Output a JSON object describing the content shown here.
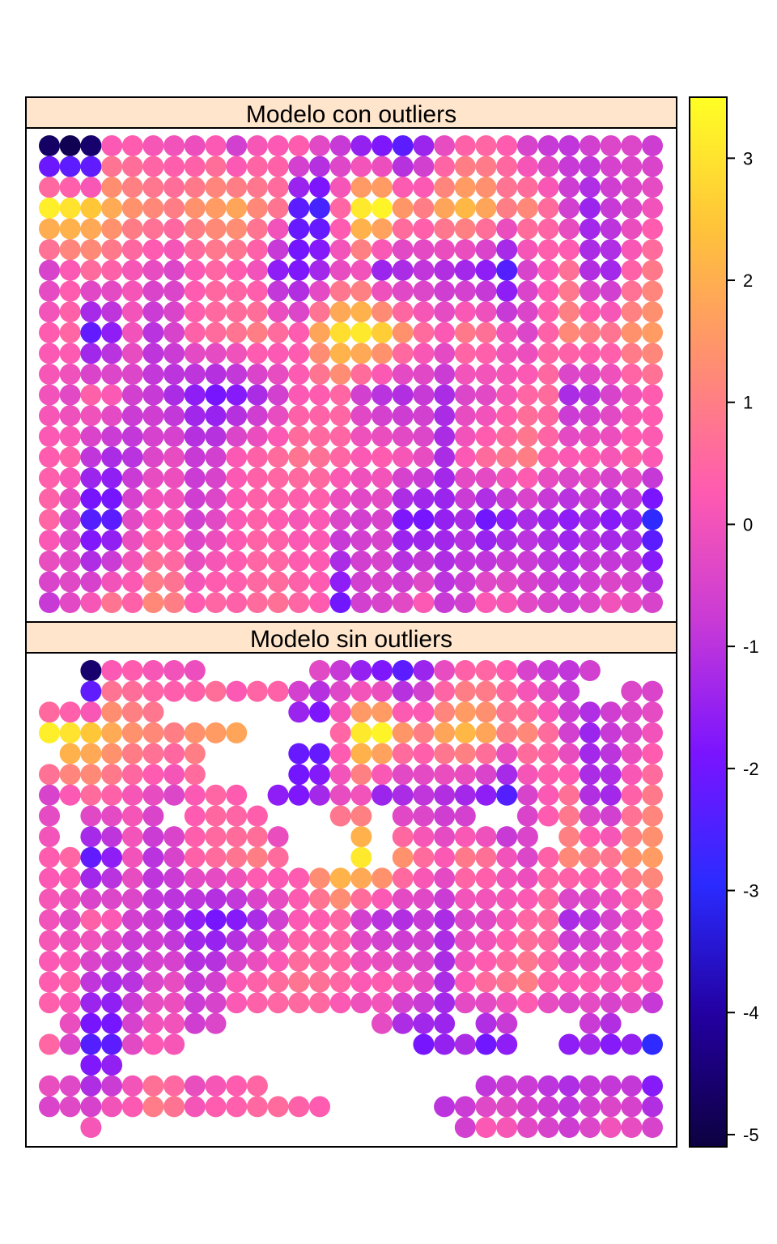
{
  "chart_data": {
    "type": "scatter",
    "description_free": true,
    "panels": [
      {
        "title": "Modelo con outliers"
      },
      {
        "title": "Modelo sin outliers"
      }
    ],
    "grid": {
      "columns": 30,
      "rows": 23,
      "seed_rows": [
        {
          "row": 0,
          "values": [
            -4.7,
            -4.9,
            -4.6,
            0.2,
            0.3,
            0.1,
            0.0,
            -0.1,
            0.2,
            -0.6,
            0.1,
            0.2,
            0.3,
            -0.3,
            -0.8,
            -1.5,
            -1.8,
            -2.3,
            -1.4,
            -0.2,
            0.4,
            0.5,
            0.3,
            -0.5,
            -0.8,
            -0.9,
            -0.6,
            -0.4,
            -0.4,
            -0.7
          ]
        },
        {
          "row": 3,
          "values": [
            3.2,
            3.0,
            2.5,
            1.9,
            1.4,
            1.2,
            1.0,
            1.4,
            1.6,
            1.8,
            1.2,
            0.8,
            -2.3,
            -2.6,
            0.5,
            3.1,
            3.3,
            1.5,
            1.0,
            1.8,
            2.2,
            1.8,
            1.0,
            1.2,
            0.6,
            -0.6,
            -1.4,
            -0.8,
            -0.4,
            0.0
          ]
        },
        {
          "row": 6,
          "values": [
            -0.5,
            0.2,
            0.6,
            0.4,
            0.1,
            -0.2,
            -0.4,
            0.2,
            0.5,
            0.3,
            0.0,
            -1.6,
            -1.8,
            -1.3,
            -0.2,
            0.0,
            -1.4,
            -1.2,
            -0.9,
            -1.1,
            -1.3,
            -1.6,
            -2.4,
            -0.5,
            0.2,
            0.7,
            -1.1,
            -1.3,
            0.4,
            0.9
          ]
        },
        {
          "row": 9,
          "values": [
            0.3,
            0.5,
            -2.2,
            -1.6,
            0.0,
            -1.0,
            -0.5,
            0.4,
            0.6,
            0.8,
            1.0,
            0.6,
            0.3,
            1.8,
            2.9,
            3.1,
            2.6,
            1.4,
            0.6,
            0.2,
            0.9,
            0.7,
            0.0,
            -0.4,
            0.4,
            1.2,
            1.0,
            0.8,
            1.4,
            1.6
          ]
        },
        {
          "row": 12,
          "values": [
            0.0,
            -0.3,
            0.4,
            0.2,
            -0.6,
            -0.8,
            -1.2,
            -1.6,
            -1.9,
            -1.7,
            -1.2,
            -0.6,
            0.2,
            0.3,
            0.5,
            -0.6,
            -1.0,
            -1.1,
            -0.8,
            -1.2,
            -0.4,
            -0.3,
            0.1,
            0.5,
            0.6,
            -1.2,
            -1.0,
            -0.5,
            0.0,
            0.3
          ]
        },
        {
          "row": 15,
          "values": [
            0.3,
            0.4,
            -0.9,
            -1.2,
            -1.0,
            -0.4,
            -0.2,
            -0.8,
            -0.6,
            0.2,
            0.4,
            0.6,
            0.8,
            0.7,
            0.5,
            0.2,
            0.3,
            0.1,
            -0.2,
            -1.2,
            0.2,
            0.6,
            0.8,
            1.0,
            0.4,
            0.2,
            0.3,
            0.1,
            0.4,
            0.2
          ]
        },
        {
          "row": 18,
          "values": [
            0.5,
            -0.4,
            -2.4,
            -2.3,
            -0.3,
            0.2,
            0.1,
            -0.6,
            -0.3,
            0.2,
            0.4,
            0.3,
            0.1,
            0.2,
            -0.4,
            -0.6,
            -0.5,
            -1.8,
            -1.9,
            -1.5,
            -1.2,
            -2.0,
            -1.6,
            -1.2,
            -1.4,
            -1.6,
            -1.3,
            -1.7,
            -1.5,
            -2.9
          ]
        },
        {
          "row": 22,
          "values": [
            -0.8,
            -0.3,
            0.1,
            0.8,
            0.4,
            1.2,
            1.0,
            0.3,
            0.5,
            0.4,
            0.6,
            0.7,
            0.5,
            0.3,
            -2.0,
            -0.6,
            -0.5,
            -0.3,
            0.2,
            -0.8,
            -0.6,
            0.2,
            0.1,
            -0.3,
            -0.5,
            -0.7,
            -0.4,
            0.0,
            -0.2,
            -0.5
          ]
        }
      ],
      "excluded_cells": [
        {
          "row": 0,
          "cols": [
            0,
            1,
            8,
            9,
            10,
            11,
            12,
            27,
            28,
            29
          ]
        },
        {
          "row": 1,
          "cols": [
            0,
            1,
            26,
            27
          ]
        },
        {
          "row": 2,
          "cols": [
            6,
            7,
            8,
            9,
            10,
            11
          ]
        },
        {
          "row": 3,
          "cols": [
            10,
            11,
            12,
            13
          ]
        },
        {
          "row": 4,
          "cols": [
            0,
            8,
            9,
            10,
            11
          ]
        },
        {
          "row": 5,
          "cols": [
            8,
            9,
            10,
            11
          ]
        },
        {
          "row": 6,
          "cols": [
            10
          ]
        },
        {
          "row": 7,
          "cols": [
            1,
            6,
            11,
            12,
            13,
            16,
            21,
            22
          ]
        },
        {
          "row": 8,
          "cols": [
            1,
            12,
            13,
            14,
            16,
            24
          ]
        },
        {
          "row": 9,
          "cols": [
            12,
            13,
            14,
            16
          ]
        },
        {
          "row": 17,
          "cols": [
            0,
            9,
            10,
            11,
            12,
            13,
            14,
            15,
            20,
            23,
            24,
            25,
            28,
            29
          ]
        },
        {
          "row": 18,
          "cols": [
            7,
            8,
            9,
            10,
            11,
            12,
            13,
            14,
            15,
            16,
            17,
            23,
            24
          ]
        },
        {
          "row": 19,
          "cols": [
            0,
            1,
            4,
            5,
            6,
            7,
            8,
            9,
            10,
            11,
            12,
            13,
            14,
            15,
            16,
            17,
            18,
            19,
            20,
            21,
            22,
            23,
            24,
            25,
            26,
            27,
            28,
            29
          ]
        },
        {
          "row": 20,
          "cols": [
            11,
            12,
            13,
            14,
            15,
            16,
            17,
            18,
            19,
            20
          ]
        },
        {
          "row": 21,
          "cols": [
            14,
            15,
            16,
            17,
            18
          ]
        },
        {
          "row": 22,
          "cols": [
            0,
            1,
            3,
            4,
            5,
            6,
            7,
            8,
            9,
            10,
            11,
            12,
            13,
            14,
            15,
            16,
            17,
            18,
            19
          ]
        }
      ]
    },
    "colorbar": {
      "range": [
        -5.1,
        3.5
      ],
      "ticks": [
        3,
        2,
        1,
        0,
        -1,
        -2,
        -3,
        -4,
        -5
      ],
      "colors": [
        "#0D0140",
        "#2300A0",
        "#2B2BFF",
        "#7A14FF",
        "#C83AD6",
        "#FF5BB0",
        "#FF8F70",
        "#FFC33A",
        "#FFFF24"
      ]
    },
    "strip_color": "#FFE5CC"
  }
}
